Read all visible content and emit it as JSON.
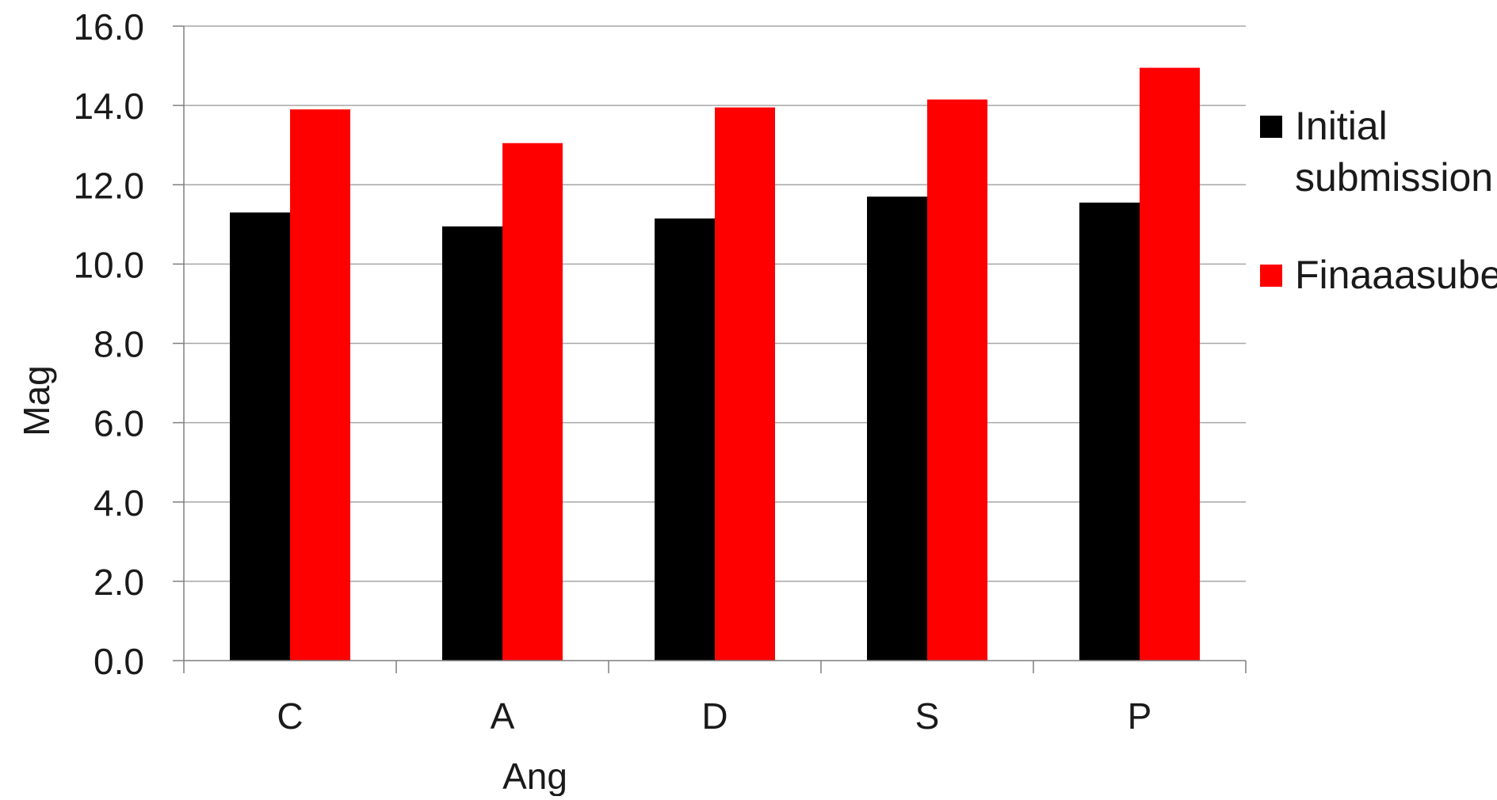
{
  "chart_data": {
    "type": "bar",
    "title": "",
    "xlabel": "Ang",
    "ylabel": "Mag",
    "categories": [
      "C",
      "A",
      "D",
      "S",
      "P"
    ],
    "series": [
      {
        "name": "Initial submission",
        "name_lines": [
          "Initial",
          "submission"
        ],
        "color": "#000000",
        "values": [
          11.3,
          10.95,
          11.15,
          11.7,
          11.55
        ]
      },
      {
        "name": "Finaaasube",
        "name_lines": [
          "Finaaasube"
        ],
        "color": "#ff0000",
        "values": [
          13.9,
          13.05,
          13.95,
          14.15,
          14.95
        ]
      }
    ],
    "ylim": [
      0,
      16
    ],
    "yticks": [
      "0.0",
      "2.0",
      "4.0",
      "6.0",
      "8.0",
      "10.0",
      "12.0",
      "14.0",
      "16.0"
    ],
    "grid": true,
    "legend": "right",
    "colors": {
      "gridline": "#a6a6a6",
      "axis": "#7f7f7f",
      "text": "#1a1a1a"
    }
  }
}
